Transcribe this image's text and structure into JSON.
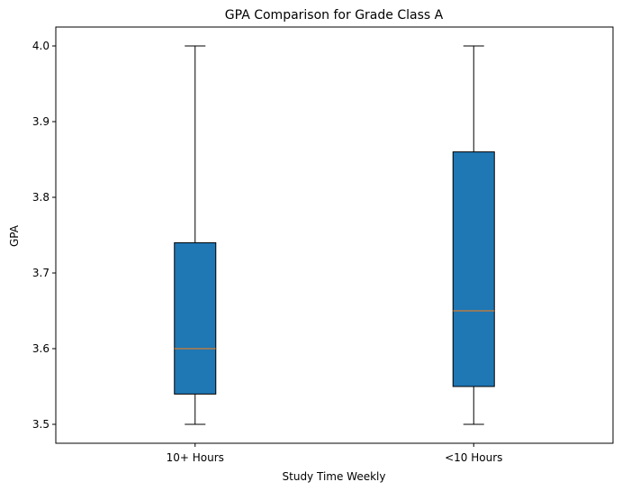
{
  "chart_data": {
    "type": "box",
    "title": "GPA Comparison for Grade Class A",
    "xlabel": "Study Time Weekly",
    "ylabel": "GPA",
    "categories": [
      "10+ Hours",
      "<10 Hours"
    ],
    "boxes": [
      {
        "category": "10+ Hours",
        "min": 3.5,
        "q1": 3.54,
        "median": 3.6,
        "q3": 3.74,
        "max": 4.0
      },
      {
        "category": "<10 Hours",
        "min": 3.5,
        "q1": 3.55,
        "median": 3.65,
        "q3": 3.86,
        "max": 4.0
      }
    ],
    "yticks": [
      "3.5",
      "3.6",
      "3.7",
      "3.8",
      "3.9",
      "4.0"
    ],
    "ylim": [
      3.475,
      4.025
    ],
    "grid": false,
    "colors": {
      "box_fill": "#1f77b4",
      "median": "#ff7f0e",
      "line": "#000000"
    }
  }
}
